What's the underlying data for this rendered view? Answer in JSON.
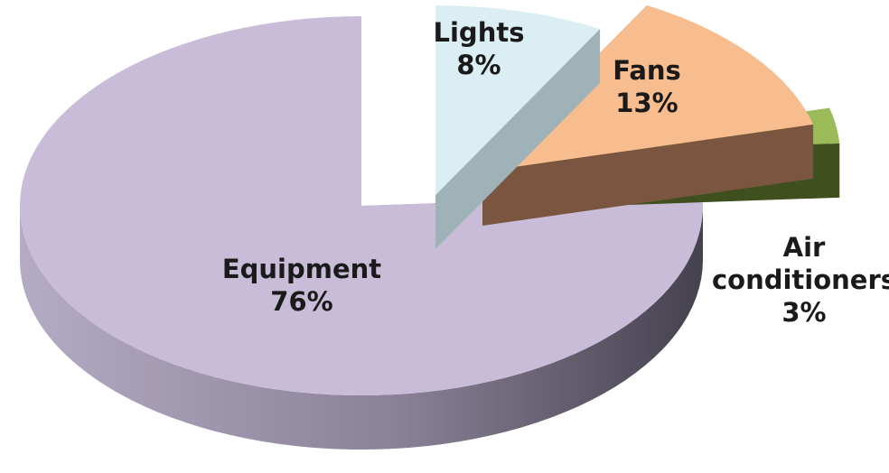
{
  "chart_data": {
    "type": "pie",
    "style": "3d-exploded",
    "title": "",
    "legend": "none",
    "slices": [
      {
        "name": "Lights",
        "value": 8,
        "label": "8%",
        "color": "#dbeef3",
        "side_color": "#9fb2b8"
      },
      {
        "name": "Fans",
        "value": 13,
        "label": "13%",
        "color": "#f7bd8e",
        "side_color": "#7a5640"
      },
      {
        "name": "Air conditioners",
        "value": 3,
        "label": "3%",
        "color": "#9bbb59",
        "side_color": "#3f4f1e"
      },
      {
        "name": "Equipment",
        "value": 76,
        "label": "76%",
        "color": "#c8bcd8",
        "side_color": "#8a8298"
      }
    ]
  }
}
